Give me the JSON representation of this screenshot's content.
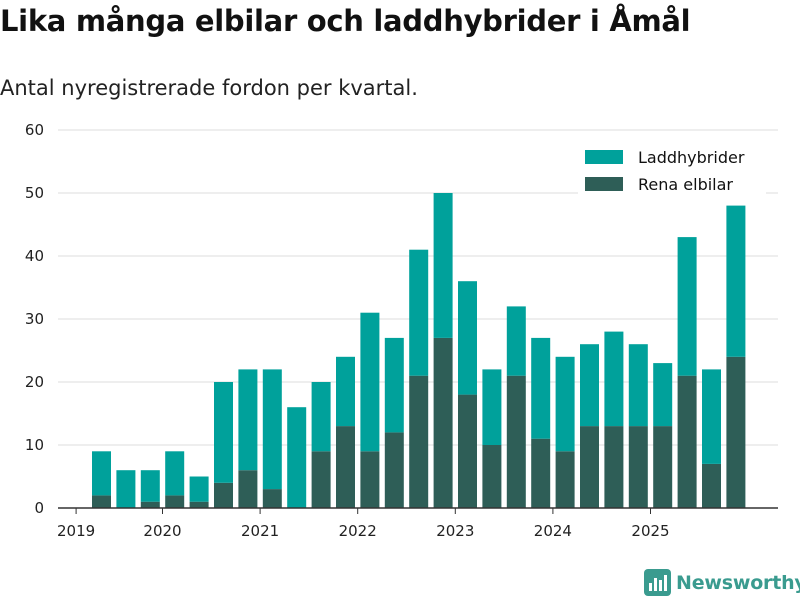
{
  "title": "Lika många elbilar och laddhybrider i Åmål",
  "subtitle": "Antal nyregistrerade fordon per kvartal.",
  "brand": "Newsworthy",
  "colors": {
    "laddhybrider": "#00a19b",
    "rena_elbilar": "#2e5e57",
    "grid": "#dddddd",
    "axis": "#333333",
    "brand": "#3a9b8f"
  },
  "chart_data": {
    "type": "bar",
    "stacked": true,
    "title": "Lika många elbilar och laddhybrider i Åmål",
    "subtitle": "Antal nyregistrerade fordon per kvartal.",
    "xlabel": "",
    "ylabel": "",
    "ylim": [
      0,
      60
    ],
    "yticks": [
      0,
      10,
      20,
      30,
      40,
      50,
      60
    ],
    "legend_position": "top-right",
    "categories": [
      "2019-Q2",
      "2019-Q3",
      "2019-Q4",
      "2020-Q1",
      "2020-Q2",
      "2020-Q3",
      "2020-Q4",
      "2021-Q1",
      "2021-Q2",
      "2021-Q3",
      "2021-Q4",
      "2022-Q1",
      "2022-Q2",
      "2022-Q3",
      "2022-Q4",
      "2023-Q1",
      "2023-Q2",
      "2023-Q3",
      "2023-Q4",
      "2024-Q1",
      "2024-Q2",
      "2024-Q3",
      "2024-Q4",
      "2025-Q1",
      "2025-Q2",
      "2025-Q3",
      "2025-Q4"
    ],
    "x_tick_labels": [
      "2019",
      "2020",
      "2021",
      "2022",
      "2023",
      "2024",
      "2025"
    ],
    "series": [
      {
        "name": "Rena elbilar",
        "values": [
          2,
          0,
          1,
          2,
          1,
          4,
          6,
          3,
          0,
          9,
          13,
          9,
          12,
          21,
          27,
          18,
          10,
          21,
          11,
          9,
          13,
          13,
          13,
          13,
          21,
          7,
          24
        ]
      },
      {
        "name": "Laddhybrider",
        "values": [
          7,
          6,
          5,
          7,
          4,
          16,
          16,
          19,
          16,
          11,
          11,
          22,
          15,
          20,
          23,
          18,
          12,
          11,
          16,
          15,
          13,
          15,
          13,
          10,
          22,
          15,
          24
        ]
      }
    ],
    "legend": [
      "Laddhybrider",
      "Rena elbilar"
    ]
  }
}
